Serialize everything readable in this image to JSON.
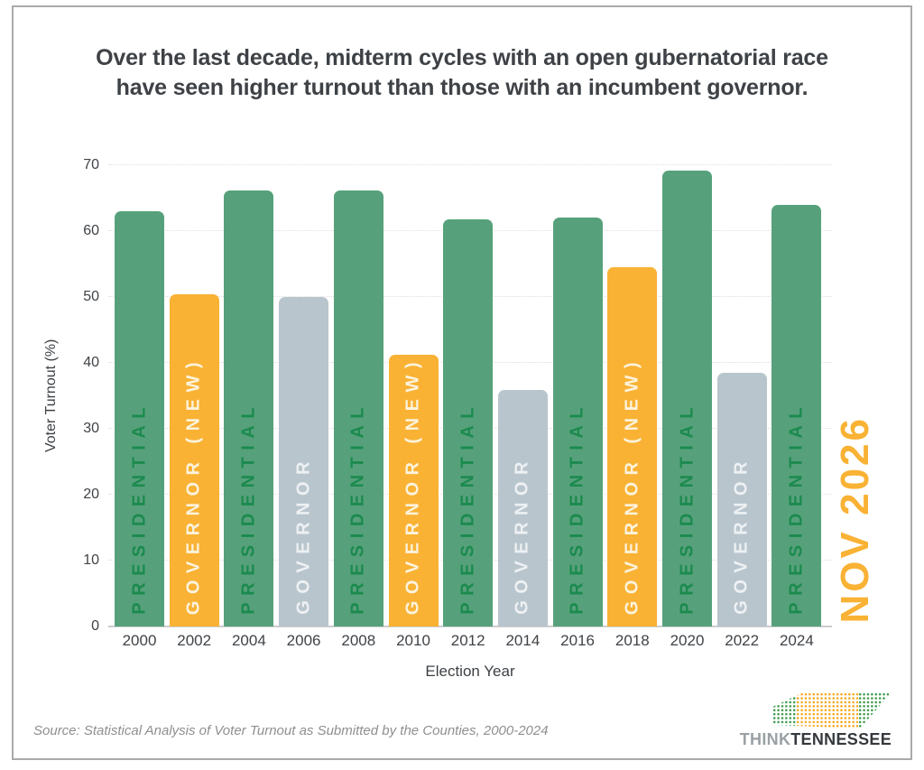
{
  "title": {
    "line1": "Over the last decade, midterm cycles with an open gubernatorial race",
    "line2": "have seen higher turnout than those with an incumbent governor."
  },
  "source": "Source: Statistical Analysis of Voter Turnout as Submitted by the Counties, 2000-2024",
  "logo": {
    "think": "THINK",
    "tennessee": "TENNESSEE"
  },
  "chart_data": {
    "type": "bar",
    "title": "Over the last decade, midterm cycles with an open gubernatorial race have seen higher turnout than those with an incumbent governor.",
    "xlabel": "Election Year",
    "ylabel": "Voter Turnout (%)",
    "ylim": [
      0,
      70
    ],
    "yticks": [
      0,
      10,
      20,
      30,
      40,
      50,
      60,
      70
    ],
    "grid": "horizontal-dotted",
    "legend": "none (category labels printed vertically inside bars)",
    "bars": [
      {
        "year": "2000",
        "value": 63.0,
        "type": "presidential",
        "label": "PRESIDENTIAL"
      },
      {
        "year": "2002",
        "value": 50.4,
        "type": "governor_new",
        "label": "GOVERNOR (NEW)"
      },
      {
        "year": "2004",
        "value": 66.2,
        "type": "presidential",
        "label": "PRESIDENTIAL"
      },
      {
        "year": "2006",
        "value": 50.0,
        "type": "governor",
        "label": "GOVERNOR"
      },
      {
        "year": "2008",
        "value": 66.2,
        "type": "presidential",
        "label": "PRESIDENTIAL"
      },
      {
        "year": "2010",
        "value": 41.2,
        "type": "governor_new",
        "label": "GOVERNOR (NEW)"
      },
      {
        "year": "2012",
        "value": 61.8,
        "type": "presidential",
        "label": "PRESIDENTIAL"
      },
      {
        "year": "2014",
        "value": 35.9,
        "type": "governor",
        "label": "GOVERNOR"
      },
      {
        "year": "2016",
        "value": 62.0,
        "type": "presidential",
        "label": "PRESIDENTIAL"
      },
      {
        "year": "2018",
        "value": 54.5,
        "type": "governor_new",
        "label": "GOVERNOR (NEW)"
      },
      {
        "year": "2020",
        "value": 69.2,
        "type": "presidential",
        "label": "PRESIDENTIAL"
      },
      {
        "year": "2022",
        "value": 38.5,
        "type": "governor",
        "label": "GOVERNOR"
      },
      {
        "year": "2024",
        "value": 64.0,
        "type": "presidential",
        "label": "PRESIDENTIAL"
      }
    ],
    "colors": {
      "presidential": "#56A17B",
      "governor_new": "#F9B234",
      "governor": "#B9C5CD",
      "presidential_text": "#1B8A4E",
      "governor_new_text": "#FCF3DC",
      "governor_text": "#EDF1F3"
    },
    "annotation": {
      "text": "NOV 2026",
      "color": "#F9B234",
      "position": "right of 2024 bar",
      "orientation": "vertical"
    }
  }
}
